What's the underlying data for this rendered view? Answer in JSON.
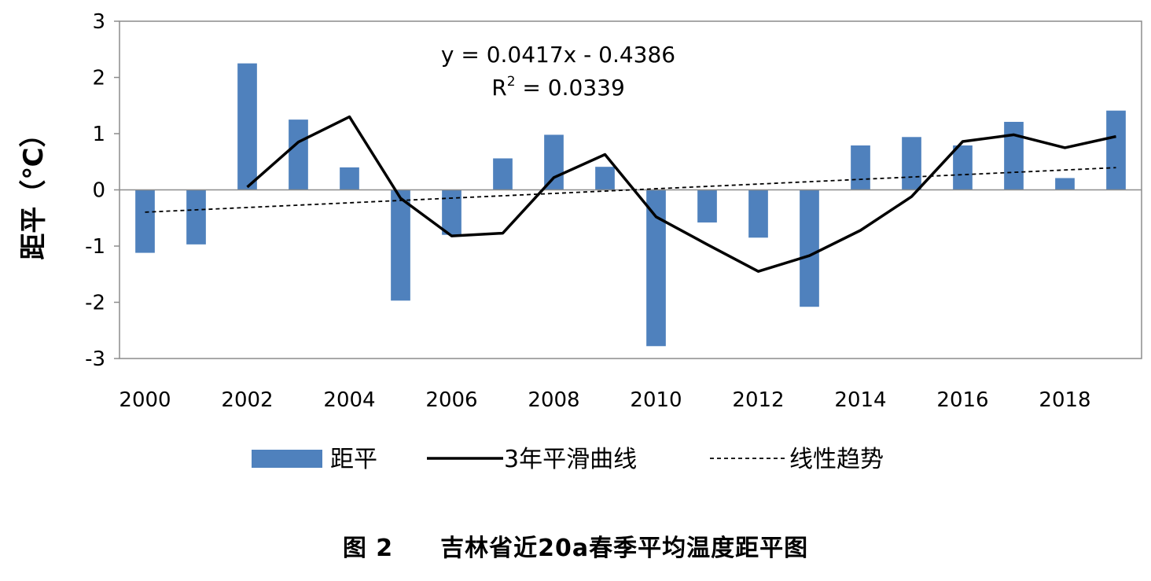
{
  "chart_data": {
    "type": "bar+line",
    "ylabel": "距平（℃）",
    "ylim": [
      -3,
      3
    ],
    "yticks": [
      3,
      2,
      1,
      0,
      -1,
      -2,
      -3
    ],
    "ytick_labels": [
      "3",
      "2",
      "1",
      "0",
      "-1",
      "-2",
      "-3"
    ],
    "x": [
      2000,
      2001,
      2002,
      2003,
      2004,
      2005,
      2006,
      2007,
      2008,
      2009,
      2010,
      2011,
      2012,
      2013,
      2014,
      2015,
      2016,
      2017,
      2018,
      2019
    ],
    "xtick_labels": [
      "2000",
      "2002",
      "2004",
      "2006",
      "2008",
      "2010",
      "2012",
      "2014",
      "2016",
      "2018"
    ],
    "xtick_years": [
      2000,
      2002,
      2004,
      2006,
      2008,
      2010,
      2012,
      2014,
      2016,
      2018
    ],
    "series": [
      {
        "name": "距平",
        "kind": "bar",
        "color": "#4f81bd",
        "values": [
          -1.12,
          -0.97,
          2.25,
          1.25,
          0.4,
          -1.97,
          -0.8,
          0.56,
          0.98,
          0.41,
          -2.78,
          -0.58,
          -0.85,
          -2.08,
          0.79,
          0.94,
          0.79,
          1.21,
          0.21,
          1.41
        ]
      },
      {
        "name": "3年平滑曲线",
        "kind": "line",
        "color": "#000000",
        "values": [
          null,
          null,
          0.05,
          0.85,
          1.3,
          -0.15,
          -0.82,
          -0.77,
          0.22,
          0.63,
          -0.48,
          -0.97,
          -1.45,
          -1.17,
          -0.72,
          -0.12,
          0.86,
          0.98,
          0.75,
          0.95
        ]
      },
      {
        "name": "线性趋势",
        "kind": "dashed-line",
        "color": "#000000",
        "slope": 0.0417,
        "intercept": -0.4386
      }
    ],
    "annotation": {
      "equation": "y = 0.0417x - 0.4386",
      "r2_prefix": "R",
      "r2_sup": "2",
      "r2_value": " = 0.0339"
    },
    "legend_position": "bottom",
    "grid": false
  },
  "caption": {
    "figure_number": "图 2",
    "title": "吉林省近20a春季平均温度距平图"
  }
}
